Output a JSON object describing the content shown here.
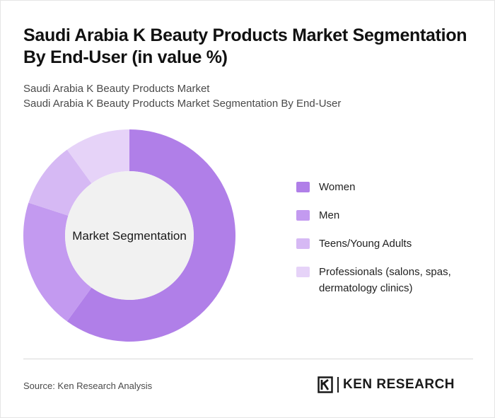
{
  "header": {
    "title": "Saudi Arabia K Beauty Products Market Segmentation By End-User (in value %)",
    "subtitle_line1": "Saudi Arabia K Beauty Products Market",
    "subtitle_line2": "Saudi Arabia K Beauty Products Market Segmentation By End-User"
  },
  "chart_data": {
    "type": "pie",
    "variant": "donut",
    "center_label": "Market Segmentation",
    "categories": [
      "Women",
      "Men",
      "Teens/Young Adults",
      "Professionals (salons, spas, dermatology clinics)"
    ],
    "values": [
      60,
      20,
      10,
      10
    ],
    "colors": [
      "#b07fe8",
      "#c39af0",
      "#d6b9f4",
      "#e6d3f8"
    ],
    "legend_position": "right"
  },
  "legend": {
    "items": [
      "Women",
      "Men",
      "Teens/Young Adults",
      "Professionals (salons, spas, dermatology clinics)"
    ]
  },
  "footer": {
    "source": "Source: Ken Research Analysis",
    "logo_text": "KEN RESEARCH"
  }
}
